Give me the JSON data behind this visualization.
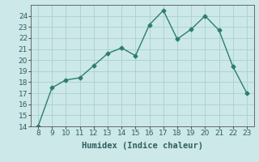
{
  "x": [
    8,
    9,
    10,
    11,
    12,
    13,
    14,
    15,
    16,
    17,
    18,
    19,
    20,
    21,
    22,
    23
  ],
  "y": [
    14,
    17.5,
    18.2,
    18.4,
    19.5,
    20.6,
    21.1,
    20.4,
    23.2,
    24.5,
    21.9,
    22.8,
    24.0,
    22.7,
    19.4,
    17.0
  ],
  "line_color": "#2e7d6e",
  "marker": "D",
  "marker_size": 2.5,
  "bg_color": "#cce8e8",
  "grid_color": "#aacfcf",
  "xlabel": "Humidex (Indice chaleur)",
  "xlim": [
    7.5,
    23.5
  ],
  "ylim": [
    14,
    25
  ],
  "yticks": [
    14,
    15,
    16,
    17,
    18,
    19,
    20,
    21,
    22,
    23,
    24
  ],
  "xticks": [
    8,
    9,
    10,
    11,
    12,
    13,
    14,
    15,
    16,
    17,
    18,
    19,
    20,
    21,
    22,
    23
  ],
  "label_fontsize": 7.5,
  "tick_fontsize": 6.5,
  "linestyle": "-",
  "linewidth": 1.0
}
